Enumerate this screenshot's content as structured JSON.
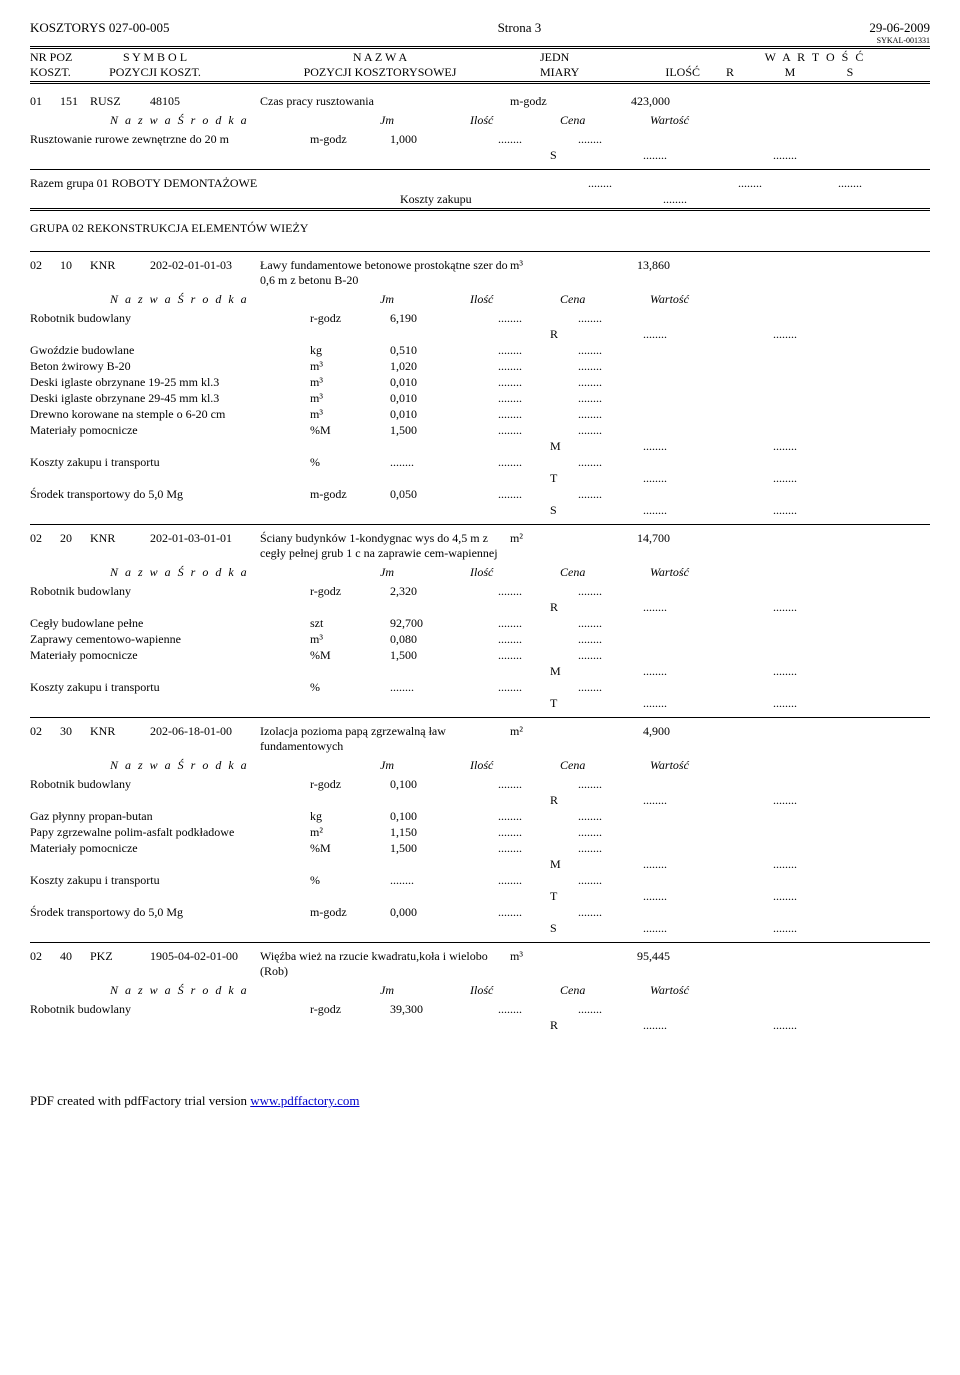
{
  "header": {
    "doc": "KOSZTORYS  027-00-005",
    "page": "Strona 3",
    "date": "29-06-2009",
    "sykal": "SYKAL-001331",
    "col1a": "NR POZ",
    "col1b": "KOSZT.",
    "col2a": "S Y M B O L",
    "col2b": "POZYCJI KOSZT.",
    "col3a": "N A Z W A",
    "col3b": "POZYCJI KOSZTORYSOWEJ",
    "col4a": "JEDN",
    "col4b": "MIARY",
    "col5b": "ILOŚĆ",
    "col6a": "W A R T O Ś Ć",
    "col6r": "R",
    "col6m": "M",
    "col6s": "S"
  },
  "srodHdr": {
    "lbl": "N a z w a  Ś r o d k a",
    "jm": "Jm",
    "il": "Ilość",
    "ce": "Cena",
    "wa": "Wartość"
  },
  "dots": "........",
  "item01": {
    "n1": "01",
    "n2": "151",
    "code": "RUSZ",
    "num": "48105",
    "desc": "Czas pracy rusztowania",
    "jedn": "m-godz",
    "ilosc": "423,000",
    "r1": {
      "name": "Rusztowanie rurowe zewnętrzne do 20 m",
      "jm": "m-godz",
      "il": "1,000"
    },
    "letS": "S"
  },
  "razem": {
    "txt": "Razem grupa      01    ROBOTY DEMONTAŻOWE",
    "koszty": "Koszty zakupu"
  },
  "grupa": {
    "txt": "GRUPA       02       REKONSTRUKCJA ELEMENTÓW WIEŻY"
  },
  "item02": {
    "n1": "02",
    "n2": "10",
    "code": "KNR",
    "num": "202-02-01-01-03",
    "desc": "Ławy fundamentowe betonowe prostokątne szer do 0,6 m z betonu B-20",
    "jedn": "m³",
    "ilosc": "13,860",
    "rows": [
      {
        "name": "Robotnik budowlany",
        "jm": "r-godz",
        "il": "6,190"
      },
      {
        "name": "Gwoździe budowlane",
        "jm": "kg",
        "il": "0,510"
      },
      {
        "name": "Beton żwirowy B-20",
        "jm": "m³",
        "il": "1,020"
      },
      {
        "name": "Deski iglaste obrzynane 19-25 mm kl.3",
        "jm": "m³",
        "il": "0,010"
      },
      {
        "name": "Deski iglaste obrzynane 29-45 mm kl.3",
        "jm": "m³",
        "il": "0,010"
      },
      {
        "name": "Drewno korowane na stemple o 6-20 cm",
        "jm": "m³",
        "il": "0,010"
      },
      {
        "name": "Materiały pomocnicze",
        "jm": "%M",
        "il": "1,500"
      },
      {
        "name": "Koszty zakupu i transportu",
        "jm": "%",
        "il": "........"
      },
      {
        "name": "Środek transportowy do 5,0 Mg",
        "jm": "m-godz",
        "il": "0,050"
      }
    ],
    "letR": "R",
    "letM": "M",
    "letT": "T",
    "letS": "S"
  },
  "item03": {
    "n1": "02",
    "n2": "20",
    "code": "KNR",
    "num": "202-01-03-01-01",
    "desc": "Ściany budynków 1-kondygnac wys do 4,5 m z cegły pełnej grub 1 c na zaprawie cem-wapiennej",
    "jedn": "m²",
    "ilosc": "14,700",
    "rows": [
      {
        "name": "Robotnik budowlany",
        "jm": "r-godz",
        "il": "2,320"
      },
      {
        "name": "Cegły budowlane pełne",
        "jm": "szt",
        "il": "92,700"
      },
      {
        "name": "Zaprawy cementowo-wapienne",
        "jm": "m³",
        "il": "0,080"
      },
      {
        "name": "Materiały pomocnicze",
        "jm": "%M",
        "il": "1,500"
      },
      {
        "name": "Koszty zakupu i transportu",
        "jm": "%",
        "il": "........"
      }
    ],
    "letR": "R",
    "letM": "M",
    "letT": "T"
  },
  "item04": {
    "n1": "02",
    "n2": "30",
    "code": "KNR",
    "num": "202-06-18-01-00",
    "desc": "Izolacja pozioma papą zgrzewalną ław fundamentowych",
    "jedn": "m²",
    "ilosc": "4,900",
    "rows": [
      {
        "name": "Robotnik budowlany",
        "jm": "r-godz",
        "il": "0,100"
      },
      {
        "name": "Gaz płynny propan-butan",
        "jm": "kg",
        "il": "0,100"
      },
      {
        "name": "Papy zgrzewalne polim-asfalt podkładowe",
        "jm": "m²",
        "il": "1,150"
      },
      {
        "name": "Materiały pomocnicze",
        "jm": "%M",
        "il": "1,500"
      },
      {
        "name": "Koszty zakupu i transportu",
        "jm": "%",
        "il": "........"
      },
      {
        "name": "Środek transportowy do 5,0 Mg",
        "jm": "m-godz",
        "il": "0,000"
      }
    ],
    "letR": "R",
    "letM": "M",
    "letT": "T",
    "letS": "S"
  },
  "item05": {
    "n1": "02",
    "n2": "40",
    "code": "PKZ",
    "num": "1905-04-02-01-00",
    "desc": "Więźba wież na rzucie kwadratu,koła i wielobo (Rob)",
    "jedn": "m³",
    "ilosc": "95,445",
    "rows": [
      {
        "name": "Robotnik budowlany",
        "jm": "r-godz",
        "il": "39,300"
      }
    ],
    "letR": "R"
  },
  "footer": {
    "pre": "PDF created with pdfFactory trial version ",
    "link": "www.pdffactory.com"
  }
}
